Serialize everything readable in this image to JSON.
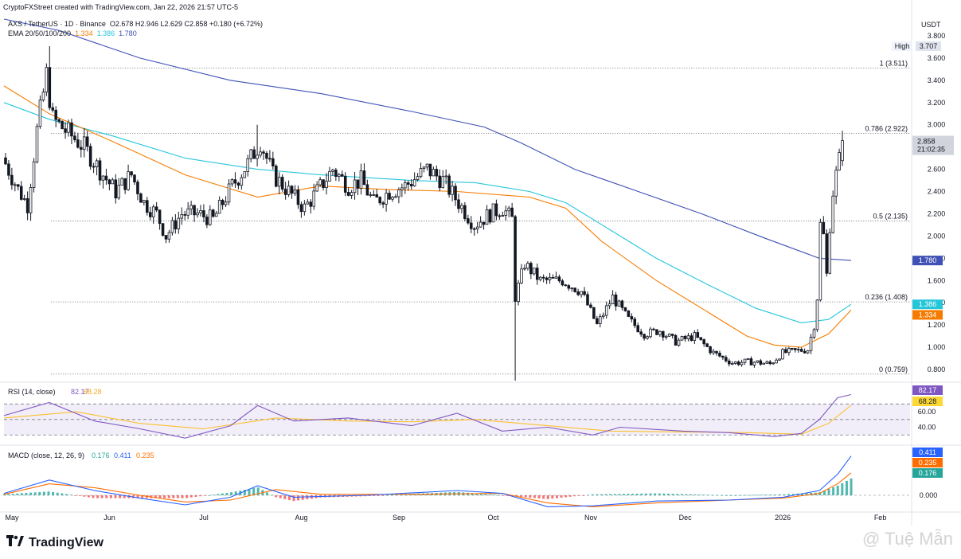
{
  "header": {
    "created_by": "CryptoFXStreet created with TradingView.com, Jan 22, 2026 21:57 UTC-5",
    "symbol_line": "AXS / TetherUS · 1D · Binance",
    "ohlc": "O2.678 H2.946 L2.629 C2.858 +0.180 (+6.72%)",
    "ema_label": "EMA 20/50/100/200",
    "ema_values": [
      "1.334",
      "1.386",
      "1.780"
    ]
  },
  "currency": "USDT",
  "footer": {
    "brand": "TradingView",
    "watermark": "@ Tuệ Mẫn"
  },
  "colors": {
    "bull": "#131722",
    "bear": "#131722",
    "ema50": "#f57c00",
    "ema100": "#26c6da",
    "ema200": "#3f51b5",
    "rsi": "#7e57c2",
    "rsi_ma": "#fbc02d",
    "macd": "#2962ff",
    "signal": "#ff6d00",
    "hist_pos": "#26a69a",
    "hist_neg": "#ef5350"
  },
  "chart_data": [
    {
      "type": "candlestick",
      "title": "AXS / TetherUS · 1D · Binance",
      "ylim": [
        0.7,
        3.8
      ],
      "yticks": [
        "0.800",
        "1.000",
        "1.200",
        "1.400",
        "1.600",
        "1.800",
        "2.000",
        "2.200",
        "2.400",
        "2.600",
        "2.800",
        "3.000",
        "3.200",
        "3.400",
        "3.600",
        "3.800"
      ],
      "xtick_labels": [
        "May",
        "Jun",
        "Jul",
        "Aug",
        "Sep",
        "Oct",
        "Nov",
        "Dec",
        "2026",
        "Feb"
      ],
      "close_path": [
        {
          "date": "2025-05-01",
          "close": 2.65
        },
        {
          "date": "2025-05-05",
          "close": 2.42
        },
        {
          "date": "2025-05-08",
          "close": 2.28
        },
        {
          "date": "2025-05-11",
          "close": 2.95
        },
        {
          "date": "2025-05-14",
          "close": 3.45
        },
        {
          "date": "2025-05-16",
          "close": 3.05
        },
        {
          "date": "2025-05-20",
          "close": 2.95
        },
        {
          "date": "2025-05-26",
          "close": 2.8
        },
        {
          "date": "2025-06-01",
          "close": 2.55
        },
        {
          "date": "2025-06-05",
          "close": 2.4
        },
        {
          "date": "2025-06-10",
          "close": 2.55
        },
        {
          "date": "2025-06-14",
          "close": 2.3
        },
        {
          "date": "2025-06-18",
          "close": 2.2
        },
        {
          "date": "2025-06-21",
          "close": 2.0
        },
        {
          "date": "2025-06-26",
          "close": 2.2
        },
        {
          "date": "2025-07-01",
          "close": 2.2
        },
        {
          "date": "2025-07-06",
          "close": 2.15
        },
        {
          "date": "2025-07-12",
          "close": 2.45
        },
        {
          "date": "2025-07-17",
          "close": 2.65
        },
        {
          "date": "2025-07-21",
          "close": 2.85
        },
        {
          "date": "2025-07-25",
          "close": 2.55
        },
        {
          "date": "2025-07-30",
          "close": 2.4
        },
        {
          "date": "2025-08-04",
          "close": 2.25
        },
        {
          "date": "2025-08-08",
          "close": 2.4
        },
        {
          "date": "2025-08-13",
          "close": 2.6
        },
        {
          "date": "2025-08-18",
          "close": 2.45
        },
        {
          "date": "2025-08-22",
          "close": 2.5
        },
        {
          "date": "2025-08-26",
          "close": 2.3
        },
        {
          "date": "2025-08-31",
          "close": 2.4
        },
        {
          "date": "2025-09-05",
          "close": 2.45
        },
        {
          "date": "2025-09-12",
          "close": 2.6
        },
        {
          "date": "2025-09-17",
          "close": 2.5
        },
        {
          "date": "2025-09-22",
          "close": 2.3
        },
        {
          "date": "2025-09-27",
          "close": 2.1
        },
        {
          "date": "2025-10-02",
          "close": 2.2
        },
        {
          "date": "2025-10-06",
          "close": 2.25
        },
        {
          "date": "2025-10-09",
          "close": 2.15
        },
        {
          "date": "2025-10-10",
          "close": 1.45
        },
        {
          "date": "2025-10-13",
          "close": 1.75
        },
        {
          "date": "2025-10-18",
          "close": 1.6
        },
        {
          "date": "2025-10-25",
          "close": 1.6
        },
        {
          "date": "2025-10-31",
          "close": 1.5
        },
        {
          "date": "2025-11-05",
          "close": 1.2
        },
        {
          "date": "2025-11-10",
          "close": 1.45
        },
        {
          "date": "2025-11-15",
          "close": 1.25
        },
        {
          "date": "2025-11-20",
          "close": 1.12
        },
        {
          "date": "2025-11-25",
          "close": 1.15
        },
        {
          "date": "2025-11-30",
          "close": 1.05
        },
        {
          "date": "2025-12-06",
          "close": 1.1
        },
        {
          "date": "2025-12-12",
          "close": 0.95
        },
        {
          "date": "2025-12-18",
          "close": 0.86
        },
        {
          "date": "2025-12-24",
          "close": 0.87
        },
        {
          "date": "2025-12-30",
          "close": 0.85
        },
        {
          "date": "2026-01-03",
          "close": 0.95
        },
        {
          "date": "2026-01-08",
          "close": 0.97
        },
        {
          "date": "2026-01-11",
          "close": 0.98
        },
        {
          "date": "2026-01-13",
          "close": 1.2
        },
        {
          "date": "2026-01-14",
          "close": 1.45
        },
        {
          "date": "2026-01-15",
          "close": 2.1
        },
        {
          "date": "2026-01-16",
          "close": 2.0
        },
        {
          "date": "2026-01-17",
          "close": 1.65
        },
        {
          "date": "2026-01-18",
          "close": 2.1
        },
        {
          "date": "2026-01-19",
          "close": 2.4
        },
        {
          "date": "2026-01-20",
          "close": 2.55
        },
        {
          "date": "2026-01-21",
          "close": 2.68
        },
        {
          "date": "2026-01-22",
          "close": 2.858
        }
      ],
      "ema_50": [
        [
          0,
          3.35
        ],
        [
          0.05,
          3.1
        ],
        [
          0.12,
          2.85
        ],
        [
          0.2,
          2.55
        ],
        [
          0.28,
          2.35
        ],
        [
          0.35,
          2.45
        ],
        [
          0.42,
          2.42
        ],
        [
          0.5,
          2.4
        ],
        [
          0.58,
          2.35
        ],
        [
          0.62,
          2.25
        ],
        [
          0.66,
          1.95
        ],
        [
          0.72,
          1.6
        ],
        [
          0.77,
          1.35
        ],
        [
          0.82,
          1.1
        ],
        [
          0.85,
          1.02
        ],
        [
          0.88,
          1.0
        ],
        [
          0.91,
          1.12
        ],
        [
          0.935,
          1.334
        ]
      ],
      "ema_100": [
        [
          0,
          3.2
        ],
        [
          0.05,
          3.05
        ],
        [
          0.12,
          2.9
        ],
        [
          0.2,
          2.7
        ],
        [
          0.28,
          2.6
        ],
        [
          0.35,
          2.55
        ],
        [
          0.45,
          2.5
        ],
        [
          0.52,
          2.48
        ],
        [
          0.58,
          2.4
        ],
        [
          0.62,
          2.3
        ],
        [
          0.67,
          2.05
        ],
        [
          0.72,
          1.8
        ],
        [
          0.78,
          1.55
        ],
        [
          0.83,
          1.35
        ],
        [
          0.88,
          1.22
        ],
        [
          0.91,
          1.25
        ],
        [
          0.935,
          1.386
        ]
      ],
      "ema_200": [
        [
          0,
          3.95
        ],
        [
          0.06,
          3.85
        ],
        [
          0.15,
          3.6
        ],
        [
          0.25,
          3.4
        ],
        [
          0.35,
          3.28
        ],
        [
          0.45,
          3.12
        ],
        [
          0.53,
          2.98
        ],
        [
          0.57,
          2.84
        ],
        [
          0.63,
          2.6
        ],
        [
          0.7,
          2.4
        ],
        [
          0.77,
          2.2
        ],
        [
          0.84,
          1.98
        ],
        [
          0.9,
          1.8
        ],
        [
          0.935,
          1.78
        ]
      ],
      "fib_levels": [
        {
          "label": "1 (3.511)",
          "value": 3.511
        },
        {
          "label": "0.786 (2.922)",
          "value": 2.922
        },
        {
          "label": "0.5 (2.135)",
          "value": 2.135
        },
        {
          "label": "0.236 (1.408)",
          "value": 1.408
        },
        {
          "label": "0 (0.759)",
          "value": 0.759
        }
      ],
      "high": {
        "label": "High",
        "value": "3.707"
      },
      "last_price": {
        "value": "2.858",
        "countdown": "21:02:35"
      },
      "badges": [
        {
          "value": "1.780",
          "color": "#3f51b5"
        },
        {
          "value": "1.386",
          "color": "#26c6da"
        },
        {
          "value": "1.334",
          "color": "#f57c00"
        }
      ]
    },
    {
      "type": "line",
      "title": "RSI (14, close)",
      "values_label": [
        "82.17",
        "68.28"
      ],
      "ylim": [
        20,
        95
      ],
      "yticks": [
        "40.00",
        "60.00"
      ],
      "bands": [
        30,
        70
      ],
      "rsi": [
        [
          0,
          55
        ],
        [
          0.05,
          72
        ],
        [
          0.1,
          48
        ],
        [
          0.15,
          38
        ],
        [
          0.2,
          26
        ],
        [
          0.25,
          42
        ],
        [
          0.28,
          68
        ],
        [
          0.32,
          48
        ],
        [
          0.38,
          52
        ],
        [
          0.45,
          42
        ],
        [
          0.5,
          58
        ],
        [
          0.55,
          35
        ],
        [
          0.6,
          40
        ],
        [
          0.65,
          30
        ],
        [
          0.68,
          40
        ],
        [
          0.75,
          35
        ],
        [
          0.8,
          33
        ],
        [
          0.85,
          28
        ],
        [
          0.88,
          32
        ],
        [
          0.9,
          50
        ],
        [
          0.92,
          78
        ],
        [
          0.935,
          82.17
        ]
      ],
      "rsi_ma": [
        [
          0,
          52
        ],
        [
          0.08,
          60
        ],
        [
          0.15,
          45
        ],
        [
          0.22,
          38
        ],
        [
          0.3,
          52
        ],
        [
          0.38,
          48
        ],
        [
          0.45,
          47
        ],
        [
          0.52,
          50
        ],
        [
          0.6,
          42
        ],
        [
          0.67,
          35
        ],
        [
          0.75,
          34
        ],
        [
          0.82,
          33
        ],
        [
          0.88,
          31
        ],
        [
          0.91,
          45
        ],
        [
          0.935,
          68.28
        ]
      ]
    },
    {
      "type": "line",
      "title": "MACD (close, 12, 26, 9)",
      "values_label": [
        "0.176",
        "0.411",
        "0.235"
      ],
      "ylim": [
        -0.15,
        0.5
      ],
      "yticks": [
        "0.000"
      ],
      "macd": [
        [
          0,
          0.02
        ],
        [
          0.05,
          0.16
        ],
        [
          0.1,
          0.05
        ],
        [
          0.15,
          -0.03
        ],
        [
          0.2,
          -0.1
        ],
        [
          0.25,
          -0.02
        ],
        [
          0.28,
          0.1
        ],
        [
          0.32,
          -0.02
        ],
        [
          0.4,
          0.0
        ],
        [
          0.46,
          0.03
        ],
        [
          0.5,
          0.05
        ],
        [
          0.55,
          0.02
        ],
        [
          0.6,
          -0.12
        ],
        [
          0.65,
          -0.11
        ],
        [
          0.72,
          -0.06
        ],
        [
          0.8,
          -0.05
        ],
        [
          0.86,
          -0.02
        ],
        [
          0.9,
          0.05
        ],
        [
          0.92,
          0.22
        ],
        [
          0.935,
          0.411
        ]
      ],
      "signal": [
        [
          0,
          0.01
        ],
        [
          0.05,
          0.12
        ],
        [
          0.1,
          0.08
        ],
        [
          0.15,
          0.0
        ],
        [
          0.2,
          -0.07
        ],
        [
          0.25,
          -0.05
        ],
        [
          0.3,
          0.06
        ],
        [
          0.35,
          0.01
        ],
        [
          0.45,
          0.01
        ],
        [
          0.55,
          0.02
        ],
        [
          0.6,
          -0.08
        ],
        [
          0.65,
          -0.12
        ],
        [
          0.72,
          -0.08
        ],
        [
          0.8,
          -0.05
        ],
        [
          0.86,
          -0.03
        ],
        [
          0.9,
          0.02
        ],
        [
          0.92,
          0.12
        ],
        [
          0.935,
          0.235
        ]
      ]
    }
  ]
}
